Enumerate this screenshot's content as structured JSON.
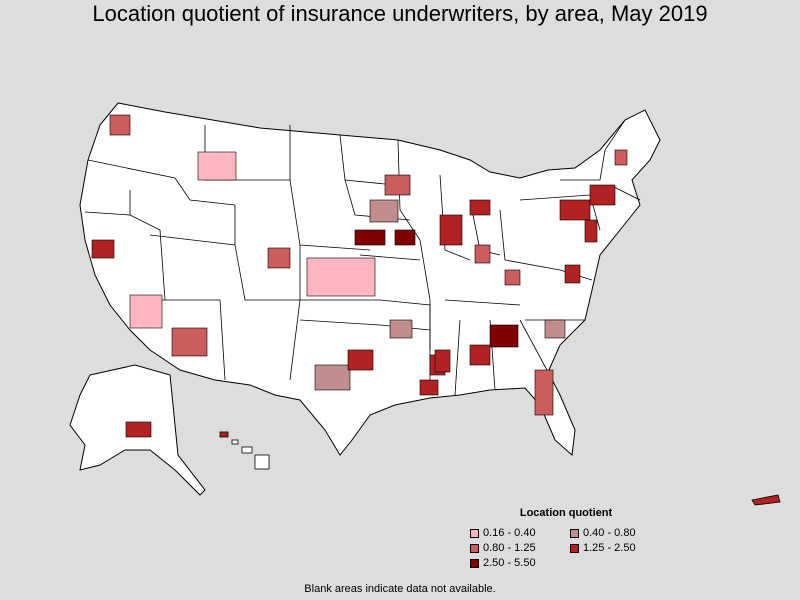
{
  "title": "Location quotient of insurance underwriters, by area, May 2019",
  "legend": {
    "title": "Location quotient",
    "items": [
      {
        "label": "0.16 - 0.40",
        "color": "#ffb6c1"
      },
      {
        "label": "0.40 - 0.80",
        "color": "#c08c8c"
      },
      {
        "label": "0.80 - 1.25",
        "color": "#cd5c5c"
      },
      {
        "label": "1.25 - 2.50",
        "color": "#b22222"
      },
      {
        "label": "2.50 - 5.50",
        "color": "#800000"
      }
    ]
  },
  "note": "Blank areas indicate data not available."
}
